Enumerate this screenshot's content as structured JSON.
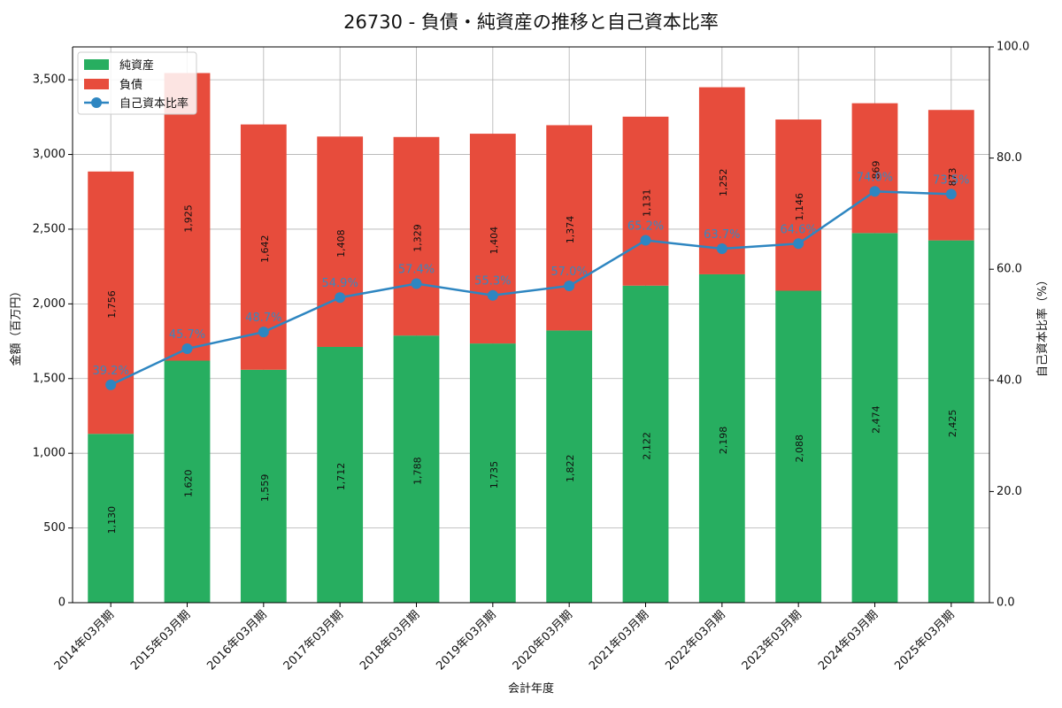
{
  "chart_data": {
    "type": "bar",
    "stacked": true,
    "title": "26730 - 負債・純資産の推移と自己資本比率",
    "xlabel": "会計年度",
    "ylabel_left": "金額（百万円）",
    "ylabel_right": "自己資本比率（%）",
    "ylim_left": [
      0,
      3720
    ],
    "ylim_right": [
      0,
      100
    ],
    "yticks_left": [
      0,
      500,
      1000,
      1500,
      2000,
      2500,
      3000,
      3500
    ],
    "yticks_left_labels": [
      "0",
      "500",
      "1,000",
      "1,500",
      "2,000",
      "2,500",
      "3,000",
      "3,500"
    ],
    "yticks_right": [
      0,
      20,
      40,
      60,
      80,
      100
    ],
    "yticks_right_labels": [
      "0.0",
      "20.0",
      "40.0",
      "60.0",
      "80.0",
      "100.0"
    ],
    "grid": true,
    "legend_position": "top-left",
    "categories": [
      "2014年03月期",
      "2015年03月期",
      "2016年03月期",
      "2017年03月期",
      "2018年03月期",
      "2019年03月期",
      "2020年03月期",
      "2021年03月期",
      "2022年03月期",
      "2023年03月期",
      "2024年03月期",
      "2025年03月期"
    ],
    "series": [
      {
        "name": "純資産",
        "type": "bar",
        "color": "#27ae60",
        "values": [
          1130,
          1620,
          1559,
          1712,
          1788,
          1735,
          1822,
          2122,
          2198,
          2088,
          2474,
          2425
        ],
        "labels": [
          "1,130",
          "1,620",
          "1,559",
          "1,712",
          "1,788",
          "1,735",
          "1,822",
          "2,122",
          "2,198",
          "2,088",
          "2,474",
          "2,425"
        ]
      },
      {
        "name": "負債",
        "type": "bar",
        "color": "#e74c3c",
        "values": [
          1756,
          1925,
          1642,
          1408,
          1329,
          1404,
          1374,
          1131,
          1252,
          1146,
          869,
          873
        ],
        "labels": [
          "1,756",
          "1,925",
          "1,642",
          "1,408",
          "1,329",
          "1,404",
          "1,374",
          "1,131",
          "1,252",
          "1,146",
          "869",
          "873"
        ]
      },
      {
        "name": "自己資本比率",
        "type": "line",
        "axis": "right",
        "color": "#2e86c1",
        "values": [
          39.2,
          45.7,
          48.7,
          54.9,
          57.4,
          55.3,
          57.0,
          65.2,
          63.7,
          64.6,
          74.0,
          73.5
        ],
        "labels": [
          "39.2%",
          "45.7%",
          "48.7%",
          "54.9%",
          "57.4%",
          "55.3%",
          "57.0%",
          "65.2%",
          "63.7%",
          "64.6%",
          "74.0%",
          "73.5%"
        ]
      }
    ]
  }
}
